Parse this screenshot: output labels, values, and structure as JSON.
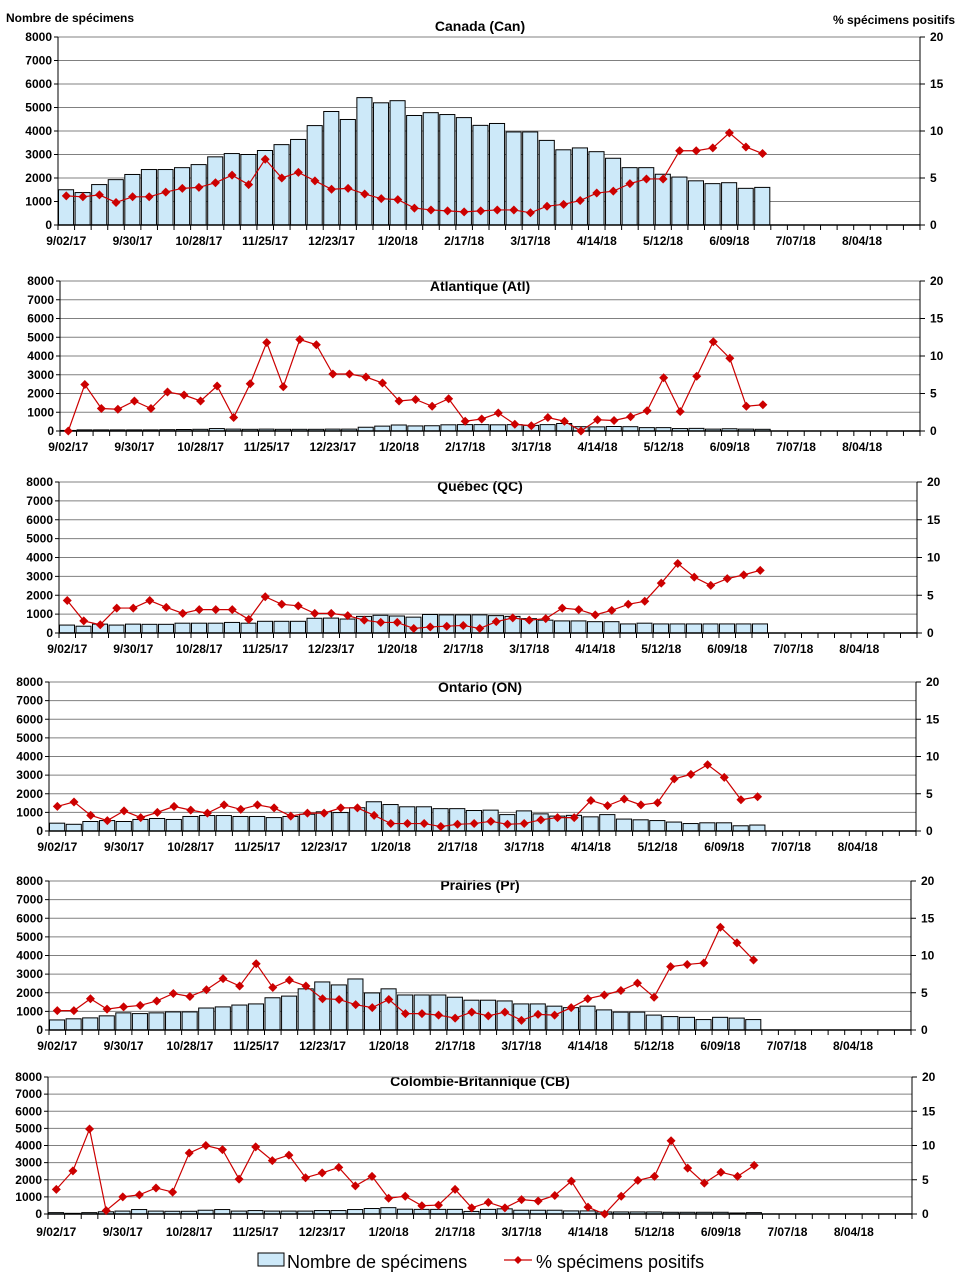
{
  "header": {
    "left_axis_title": "Nombre de spécimens",
    "right_axis_title": "% spécimens positifs"
  },
  "legend": {
    "bars_label": "Nombre de spécimens",
    "line_label": "% spécimens positifs"
  },
  "colors": {
    "bar_fill": "#cde9f9",
    "line": "#cc0000"
  },
  "chart_data": [
    {
      "type": "bar+line",
      "title": "Canada (Can)",
      "x_tick_labels": [
        "9/02/17",
        "9/30/17",
        "10/28/17",
        "11/25/17",
        "12/23/17",
        "1/20/18",
        "2/17/18",
        "3/17/18",
        "4/14/18",
        "5/12/18",
        "6/09/18",
        "7/07/18",
        "8/04/18"
      ],
      "num_weeks": 52,
      "y_left_ticks": [
        "0",
        "1000",
        "2000",
        "3000",
        "4000",
        "5000",
        "6000",
        "7000",
        "8000"
      ],
      "y_right_ticks": [
        "0",
        "5",
        "10",
        "15",
        "20"
      ],
      "ylim_left": [
        0,
        8000
      ],
      "ylim_right": [
        0,
        20
      ],
      "grid": true,
      "series": [
        {
          "name": "Nombre de spécimens",
          "type": "bar",
          "values": [
            1500,
            1380,
            1720,
            1930,
            2150,
            2360,
            2360,
            2440,
            2570,
            2900,
            3040,
            3000,
            3170,
            3420,
            3640,
            4230,
            4830,
            4490,
            5420,
            5200,
            5290,
            4660,
            4780,
            4700,
            4570,
            4240,
            4320,
            3960,
            3960,
            3600,
            3200,
            3280,
            3120,
            2840,
            2440,
            2440,
            2160,
            2040,
            1880,
            1760,
            1800,
            1560,
            1600
          ]
        },
        {
          "name": "% spécimens positifs",
          "type": "line",
          "axis": "right",
          "values": [
            3.1,
            3.0,
            3.2,
            2.4,
            3.0,
            3.0,
            3.5,
            3.9,
            4.0,
            4.5,
            5.3,
            4.3,
            7.0,
            5.0,
            5.6,
            4.7,
            3.8,
            3.9,
            3.3,
            2.8,
            2.7,
            1.8,
            1.6,
            1.5,
            1.4,
            1.5,
            1.6,
            1.6,
            1.3,
            2.0,
            2.2,
            2.6,
            3.4,
            3.6,
            4.4,
            4.9,
            4.9,
            7.9,
            7.9,
            8.2,
            9.8,
            8.3,
            7.6
          ]
        }
      ]
    },
    {
      "type": "bar+line",
      "title": "Atlantique (Atl)",
      "x_tick_labels": [
        "9/02/17",
        "9/30/17",
        "10/28/17",
        "11/25/17",
        "12/23/17",
        "1/20/18",
        "2/17/18",
        "3/17/18",
        "4/14/18",
        "5/12/18",
        "6/09/18",
        "7/07/18",
        "8/04/18"
      ],
      "num_weeks": 52,
      "y_left_ticks": [
        "0",
        "1000",
        "2000",
        "3000",
        "4000",
        "5000",
        "6000",
        "7000",
        "8000"
      ],
      "y_right_ticks": [
        "0",
        "5",
        "10",
        "15",
        "20"
      ],
      "ylim_left": [
        0,
        8000
      ],
      "ylim_right": [
        0,
        20
      ],
      "grid": true,
      "series": [
        {
          "name": "Nombre de spécimens",
          "type": "bar",
          "values": [
            30,
            60,
            60,
            60,
            60,
            60,
            70,
            80,
            90,
            130,
            100,
            90,
            100,
            90,
            90,
            90,
            100,
            100,
            200,
            260,
            320,
            270,
            280,
            330,
            340,
            340,
            330,
            340,
            300,
            340,
            400,
            230,
            220,
            240,
            230,
            180,
            180,
            130,
            140,
            100,
            120,
            100,
            90
          ]
        },
        {
          "name": "% spécimens positifs",
          "type": "line",
          "axis": "right",
          "values": [
            0,
            6.2,
            3.0,
            2.9,
            4.0,
            3.0,
            5.2,
            4.8,
            4.0,
            6.0,
            1.8,
            6.3,
            11.8,
            5.9,
            12.2,
            11.5,
            7.6,
            7.6,
            7.2,
            6.4,
            4.0,
            4.2,
            3.3,
            4.3,
            1.3,
            1.6,
            2.4,
            0.9,
            0.7,
            1.8,
            1.3,
            0.0,
            1.5,
            1.4,
            1.9,
            2.7,
            7.1,
            2.6,
            7.3,
            11.9,
            9.7,
            3.3,
            3.5
          ]
        }
      ]
    },
    {
      "type": "bar+line",
      "title": "Québec (QC)",
      "x_tick_labels": [
        "9/02/17",
        "9/30/17",
        "10/28/17",
        "11/25/17",
        "12/23/17",
        "1/20/18",
        "2/17/18",
        "3/17/18",
        "4/14/18",
        "5/12/18",
        "6/09/18",
        "7/07/18",
        "8/04/18"
      ],
      "num_weeks": 52,
      "y_left_ticks": [
        "0",
        "1000",
        "2000",
        "3000",
        "4000",
        "5000",
        "6000",
        "7000",
        "8000"
      ],
      "y_right_ticks": [
        "0",
        "5",
        "10",
        "15",
        "20"
      ],
      "ylim_left": [
        0,
        8000
      ],
      "ylim_right": [
        0,
        20
      ],
      "grid": true,
      "series": [
        {
          "name": "Nombre de spécimens",
          "type": "bar",
          "values": [
            420,
            360,
            470,
            420,
            470,
            460,
            460,
            520,
            520,
            520,
            560,
            520,
            620,
            620,
            620,
            780,
            790,
            740,
            880,
            940,
            900,
            840,
            980,
            960,
            960,
            960,
            920,
            880,
            760,
            680,
            640,
            640,
            600,
            600,
            480,
            520,
            480,
            480,
            480,
            480,
            480,
            480,
            480
          ]
        },
        {
          "name": "% spécimens positifs",
          "type": "line",
          "axis": "right",
          "values": [
            4.3,
            1.6,
            1.1,
            3.3,
            3.3,
            4.3,
            3.4,
            2.6,
            3.1,
            3.1,
            3.1,
            1.8,
            4.8,
            3.8,
            3.6,
            2.6,
            2.6,
            2.3,
            1.7,
            1.4,
            1.4,
            0.6,
            0.8,
            0.9,
            1.0,
            0.6,
            1.5,
            2.0,
            1.7,
            1.9,
            3.3,
            3.1,
            2.4,
            3.0,
            3.8,
            4.2,
            6.6,
            9.2,
            7.4,
            6.3,
            7.2,
            7.7,
            8.3
          ]
        }
      ]
    },
    {
      "type": "bar+line",
      "title": "Ontario (ON)",
      "x_tick_labels": [
        "9/02/17",
        "9/30/17",
        "10/28/17",
        "11/25/17",
        "12/23/17",
        "1/20/18",
        "2/17/18",
        "3/17/18",
        "4/14/18",
        "5/12/18",
        "6/09/18",
        "7/07/18",
        "8/04/18"
      ],
      "num_weeks": 52,
      "y_left_ticks": [
        "0",
        "1000",
        "2000",
        "3000",
        "4000",
        "5000",
        "6000",
        "7000",
        "8000"
      ],
      "y_right_ticks": [
        "0",
        "5",
        "10",
        "15",
        "20"
      ],
      "ylim_left": [
        0,
        8000
      ],
      "ylim_right": [
        0,
        20
      ],
      "grid": true,
      "series": [
        {
          "name": "Nombre de spécimens",
          "type": "bar",
          "values": [
            420,
            360,
            510,
            560,
            510,
            620,
            670,
            620,
            780,
            830,
            830,
            780,
            780,
            720,
            780,
            900,
            1030,
            990,
            1250,
            1570,
            1420,
            1300,
            1300,
            1200,
            1200,
            1100,
            1120,
            880,
            1080,
            920,
            800,
            840,
            760,
            880,
            640,
            600,
            560,
            480,
            400,
            440,
            440,
            280,
            320
          ]
        },
        {
          "name": "% spécimens positifs",
          "type": "line",
          "axis": "right",
          "values": [
            3.3,
            3.9,
            2.1,
            1.4,
            2.7,
            1.8,
            2.5,
            3.3,
            2.8,
            2.4,
            3.5,
            2.9,
            3.5,
            3.1,
            2.0,
            2.4,
            2.4,
            3.1,
            3.1,
            2.1,
            1.0,
            1.0,
            1.0,
            0.6,
            0.9,
            1.0,
            1.3,
            0.9,
            1.0,
            1.5,
            1.8,
            1.8,
            4.1,
            3.4,
            4.3,
            3.5,
            3.8,
            7.0,
            7.6,
            8.9,
            7.2,
            4.2,
            4.6
          ]
        }
      ]
    },
    {
      "type": "bar+line",
      "title": "Prairies (Pr)",
      "x_tick_labels": [
        "9/02/17",
        "9/30/17",
        "10/28/17",
        "11/25/17",
        "12/23/17",
        "1/20/18",
        "2/17/18",
        "3/17/18",
        "4/14/18",
        "5/12/18",
        "6/09/18",
        "7/07/18",
        "8/04/18"
      ],
      "num_weeks": 52,
      "y_left_ticks": [
        "0",
        "1000",
        "2000",
        "3000",
        "4000",
        "5000",
        "6000",
        "7000",
        "8000"
      ],
      "y_right_ticks": [
        "0",
        "5",
        "10",
        "15",
        "20"
      ],
      "ylim_left": [
        0,
        8000
      ],
      "ylim_right": [
        0,
        20
      ],
      "grid": true,
      "series": [
        {
          "name": "Nombre de spécimens",
          "type": "bar",
          "values": [
            540,
            600,
            650,
            760,
            920,
            880,
            920,
            970,
            970,
            1180,
            1240,
            1340,
            1400,
            1730,
            1820,
            2210,
            2580,
            2420,
            2740,
            1990,
            2210,
            1880,
            1880,
            1880,
            1760,
            1600,
            1600,
            1560,
            1400,
            1400,
            1280,
            1200,
            1280,
            1080,
            960,
            960,
            800,
            720,
            680,
            560,
            680,
            640,
            560
          ]
        },
        {
          "name": "% spécimens positifs",
          "type": "line",
          "axis": "right",
          "values": [
            2.6,
            2.6,
            4.2,
            2.8,
            3.1,
            3.3,
            3.9,
            4.9,
            4.5,
            5.4,
            6.9,
            5.9,
            8.9,
            5.7,
            6.7,
            5.9,
            4.2,
            4.1,
            3.4,
            3.0,
            4.1,
            2.2,
            2.2,
            2.0,
            1.6,
            2.4,
            1.9,
            2.4,
            1.3,
            2.1,
            2.0,
            3.0,
            4.2,
            4.7,
            5.3,
            6.3,
            4.4,
            8.5,
            8.8,
            9.0,
            13.8,
            11.7,
            9.4
          ]
        }
      ]
    },
    {
      "type": "bar+line",
      "title": "Colombie-Britannique (CB)",
      "x_tick_labels": [
        "9/02/17",
        "9/30/17",
        "10/28/17",
        "11/25/17",
        "12/23/17",
        "1/20/18",
        "2/17/18",
        "3/17/18",
        "4/14/18",
        "5/12/18",
        "6/09/18",
        "7/07/18",
        "8/04/18"
      ],
      "num_weeks": 52,
      "y_left_ticks": [
        "0",
        "1000",
        "2000",
        "3000",
        "4000",
        "5000",
        "6000",
        "7000",
        "8000"
      ],
      "y_right_ticks": [
        "0",
        "5",
        "10",
        "15",
        "20"
      ],
      "ylim_left": [
        0,
        8000
      ],
      "ylim_right": [
        0,
        20
      ],
      "grid": true,
      "series": [
        {
          "name": "Nombre de spécimens",
          "type": "bar",
          "values": [
            80,
            40,
            80,
            130,
            170,
            260,
            170,
            160,
            160,
            220,
            260,
            170,
            200,
            170,
            170,
            170,
            200,
            200,
            260,
            320,
            370,
            280,
            270,
            270,
            270,
            150,
            270,
            300,
            220,
            220,
            220,
            180,
            180,
            120,
            120,
            120,
            120,
            100,
            100,
            100,
            100,
            60,
            80
          ]
        },
        {
          "name": "% spécimens positifs",
          "type": "line",
          "axis": "right",
          "values": [
            3.6,
            6.3,
            12.4,
            0.5,
            2.5,
            2.8,
            3.8,
            3.2,
            8.9,
            10.0,
            9.4,
            5.1,
            9.8,
            7.8,
            8.6,
            5.3,
            6.0,
            6.8,
            4.1,
            5.5,
            2.3,
            2.6,
            1.2,
            1.3,
            3.6,
            0.9,
            1.7,
            0.9,
            2.1,
            1.9,
            2.7,
            4.8,
            1.0,
            0.0,
            2.6,
            4.9,
            5.5,
            10.7,
            6.7,
            4.5,
            6.1,
            5.5,
            7.1
          ]
        }
      ]
    }
  ]
}
